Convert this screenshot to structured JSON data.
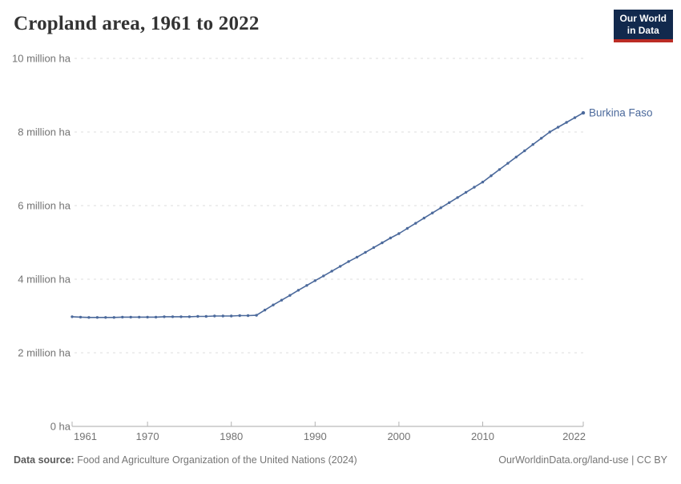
{
  "header": {
    "title": "Cropland area, 1961 to 2022"
  },
  "logo": {
    "line1": "Our World",
    "line2": "in Data",
    "bg_color": "#12294d",
    "accent_color": "#bb2c25"
  },
  "chart_data": {
    "type": "line",
    "title": "Cropland area, 1961 to 2022",
    "entity": "Burkina Faso",
    "line_color": "#4c6a9c",
    "grid": "horizontal-dashed",
    "legend_position": "end-of-line",
    "xlabel": "",
    "ylabel": "",
    "ylim": [
      0,
      10
    ],
    "values_unit": "million ha",
    "yticks": [
      {
        "value": 0,
        "label": "0 ha"
      },
      {
        "value": 2,
        "label": "2 million ha"
      },
      {
        "value": 4,
        "label": "4 million ha"
      },
      {
        "value": 6,
        "label": "6 million ha"
      },
      {
        "value": 8,
        "label": "8 million ha"
      },
      {
        "value": 10,
        "label": "10 million ha"
      }
    ],
    "xticks": [
      1961,
      1970,
      1980,
      1990,
      2000,
      2010,
      2022
    ],
    "x": [
      1961,
      1962,
      1963,
      1964,
      1965,
      1966,
      1967,
      1968,
      1969,
      1970,
      1971,
      1972,
      1973,
      1974,
      1975,
      1976,
      1977,
      1978,
      1979,
      1980,
      1981,
      1982,
      1983,
      1984,
      1985,
      1986,
      1987,
      1988,
      1989,
      1990,
      1991,
      1992,
      1993,
      1994,
      1995,
      1996,
      1997,
      1998,
      1999,
      2000,
      2001,
      2002,
      2003,
      2004,
      2005,
      2006,
      2007,
      2008,
      2009,
      2010,
      2011,
      2012,
      2013,
      2014,
      2015,
      2016,
      2017,
      2018,
      2019,
      2020,
      2021,
      2022
    ],
    "series": [
      {
        "name": "Burkina Faso",
        "values": [
          2.98,
          2.97,
          2.96,
          2.96,
          2.96,
          2.96,
          2.97,
          2.97,
          2.97,
          2.97,
          2.97,
          2.98,
          2.98,
          2.98,
          2.98,
          2.99,
          2.99,
          3.0,
          3.0,
          3.0,
          3.01,
          3.01,
          3.02,
          3.16,
          3.3,
          3.43,
          3.56,
          3.7,
          3.83,
          3.96,
          4.09,
          4.22,
          4.35,
          4.48,
          4.6,
          4.73,
          4.86,
          4.99,
          5.12,
          5.24,
          5.38,
          5.52,
          5.66,
          5.8,
          5.94,
          6.08,
          6.22,
          6.36,
          6.5,
          6.64,
          6.81,
          6.98,
          7.15,
          7.32,
          7.49,
          7.66,
          7.83,
          8.0,
          8.13,
          8.26,
          8.39,
          8.52
        ]
      }
    ]
  },
  "footer": {
    "source_label": "Data source:",
    "source_text": " Food and Agriculture Organization of the United Nations (2024)",
    "rights": "OurWorldinData.org/land-use | CC BY"
  }
}
